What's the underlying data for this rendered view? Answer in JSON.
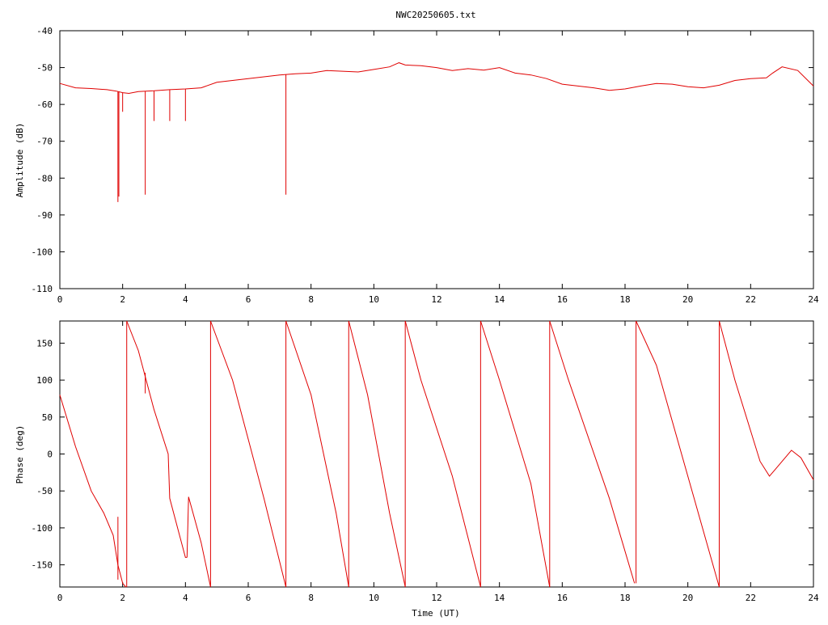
{
  "title": "NWC20250605.txt",
  "chart_data": [
    {
      "type": "line",
      "xlabel": "",
      "ylabel": "Amplitude (dB)",
      "xlim": [
        0,
        24
      ],
      "ylim": [
        -110,
        -40
      ],
      "x_ticks": [
        "0",
        "2",
        "4",
        "6",
        "8",
        "10",
        "12",
        "14",
        "16",
        "18",
        "20",
        "22",
        "24"
      ],
      "y_ticks": [
        "-110",
        "-100",
        "-90",
        "-80",
        "-70",
        "-60",
        "-50",
        "-40"
      ],
      "grid": false,
      "color": "#e00000",
      "series": [
        {
          "x": [
            0,
            0.5,
            1,
            1.5,
            1.8,
            2.0,
            2.2,
            2.5,
            3,
            3.5,
            4,
            4.5,
            5,
            6,
            7,
            7.5,
            8,
            8.5,
            9,
            9.5,
            10,
            10.5,
            10.8,
            11,
            11.5,
            12,
            12.5,
            13,
            13.5,
            14,
            14.5,
            15,
            15.5,
            16,
            16.5,
            17,
            17.5,
            18,
            18.5,
            19,
            19.5,
            20,
            20.5,
            21,
            21.5,
            22,
            22.5,
            22.7,
            23,
            23.5,
            24
          ],
          "y": [
            -54.3,
            -55.5,
            -55.7,
            -56.0,
            -56.4,
            -56.8,
            -57.0,
            -56.5,
            -56.3,
            -56.0,
            -55.8,
            -55.5,
            -54.0,
            -53.0,
            -52.0,
            -51.7,
            -51.5,
            -50.8,
            -51.0,
            -51.2,
            -50.5,
            -49.8,
            -48.7,
            -49.3,
            -49.5,
            -50.0,
            -50.8,
            -50.3,
            -50.7,
            -50.0,
            -51.5,
            -52.0,
            -53.0,
            -54.5,
            -55.0,
            -55.5,
            -56.2,
            -55.8,
            -55.0,
            -54.3,
            -54.5,
            -55.2,
            -55.5,
            -54.8,
            -53.5,
            -53.0,
            -52.8,
            -51.5,
            -49.8,
            -50.8,
            -55.0
          ]
        }
      ],
      "spikes": [
        {
          "x": 1.85,
          "y": -86.5
        },
        {
          "x": 1.88,
          "y": -85.0
        },
        {
          "x": 2.0,
          "y": -62.0
        },
        {
          "x": 2.72,
          "y": -84.5
        },
        {
          "x": 3.0,
          "y": -64.5
        },
        {
          "x": 3.5,
          "y": -64.5
        },
        {
          "x": 4.0,
          "y": -64.5
        },
        {
          "x": 7.2,
          "y": -84.5
        }
      ]
    },
    {
      "type": "line",
      "xlabel": "Time (UT)",
      "ylabel": "Phase (deg)",
      "xlim": [
        0,
        24
      ],
      "ylim": [
        -180,
        180
      ],
      "x_ticks": [
        "0",
        "2",
        "4",
        "6",
        "8",
        "10",
        "12",
        "14",
        "16",
        "18",
        "20",
        "22",
        "24"
      ],
      "y_ticks": [
        "-150",
        "-100",
        "-50",
        "0",
        "50",
        "100",
        "150"
      ],
      "grid": false,
      "color": "#e00000",
      "series": [
        {
          "x": [
            0,
            0.5,
            1.0,
            1.4,
            1.7,
            1.85,
            2.0,
            2.1
          ],
          "y": [
            80,
            10,
            -50,
            -80,
            -110,
            -150,
            -175,
            -180
          ]
        },
        {
          "x": [
            2.13,
            2.5,
            3.0,
            3.45,
            3.5,
            4.0,
            4.05
          ],
          "y": [
            180,
            140,
            60,
            0,
            -60,
            -140,
            -140
          ]
        },
        {
          "x": [
            4.05,
            4.1,
            4.5,
            4.8
          ],
          "y": [
            -140,
            -58,
            -120,
            -180
          ]
        },
        {
          "x": [
            4.8,
            5.5,
            6.5,
            7.2
          ],
          "y": [
            180,
            100,
            -60,
            -180
          ]
        },
        {
          "x": [
            7.2,
            8.0,
            8.8,
            9.2
          ],
          "y": [
            180,
            80,
            -80,
            -180
          ]
        },
        {
          "x": [
            9.2,
            9.8,
            10.5,
            11.0
          ],
          "y": [
            180,
            80,
            -80,
            -180
          ]
        },
        {
          "x": [
            11.0,
            11.5,
            12.5,
            13.4
          ],
          "y": [
            180,
            100,
            -30,
            -180
          ]
        },
        {
          "x": [
            13.4,
            14.0,
            15.0,
            15.6
          ],
          "y": [
            180,
            100,
            -40,
            -180
          ]
        },
        {
          "x": [
            15.6,
            16.2,
            17.5,
            18.3
          ],
          "y": [
            180,
            100,
            -60,
            -175
          ]
        },
        {
          "x": [
            18.35,
            19.0,
            20.2,
            21.0
          ],
          "y": [
            180,
            120,
            -60,
            -180
          ]
        },
        {
          "x": [
            21.0,
            21.5,
            22.3,
            22.6,
            22.8,
            23.3,
            23.6,
            24.0
          ],
          "y": [
            180,
            100,
            -10,
            -30,
            -20,
            5,
            -5,
            -35
          ]
        }
      ],
      "spikes": [
        {
          "x": 1.85,
          "y_from": -170,
          "y_to": -85
        },
        {
          "x": 2.72,
          "y_from": 110,
          "y_to": 82
        }
      ]
    }
  ]
}
